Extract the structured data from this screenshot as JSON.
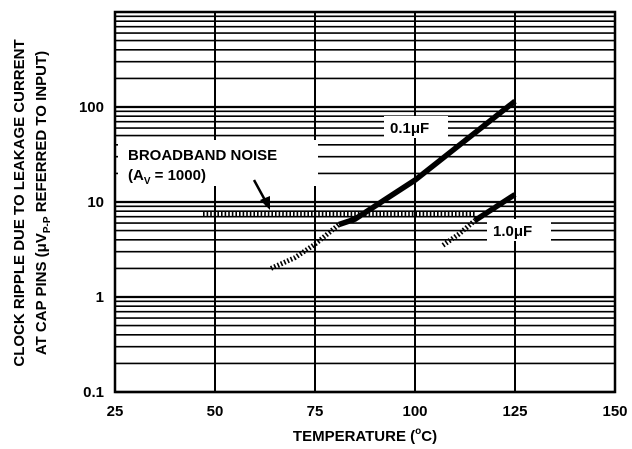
{
  "chart_data": {
    "type": "line",
    "xlabel": {
      "main": "TEMPERATURE (",
      "sup": "o",
      "post": "C)"
    },
    "ylabel": {
      "line1": "CLOCK RIPPLE DUE TO LEAKAGE CURRENT",
      "line2_pre": "AT CAP PINS (",
      "line2_mu": "μ",
      "line2_v": "V",
      "line2_sub": "P-P",
      "line2_post": " REFERRED TO INPUT)"
    },
    "x_range": [
      25,
      150
    ],
    "y_range": [
      0.1,
      1000
    ],
    "y_scale": "log",
    "x_ticks": [
      "25",
      "50",
      "75",
      "100",
      "125",
      "150"
    ],
    "y_ticks": [
      {
        "value": 0.1,
        "label": "0.1"
      },
      {
        "value": 1,
        "label": "1"
      },
      {
        "value": 10,
        "label": "10"
      },
      {
        "value": 100,
        "label": "100"
      }
    ],
    "grid": true,
    "series": [
      {
        "name": "0.1μF",
        "style": "solid",
        "x": [
          81,
          85,
          100,
          125
        ],
        "y": [
          5.8,
          6.6,
          17,
          115
        ]
      },
      {
        "name": "1.0μF",
        "style": "solid",
        "x": [
          115,
          125
        ],
        "y": [
          6.4,
          12
        ]
      },
      {
        "name": "BROADBAND NOISE",
        "style": "hatched",
        "x": [
          47,
          60,
          70,
          80,
          90,
          100,
          110,
          115
        ],
        "y": [
          7.5,
          7.5,
          7.4,
          7.4,
          7.4,
          7.4,
          7.4,
          7.4
        ]
      },
      {
        "name": "",
        "style": "hatched",
        "x": [
          64,
          70,
          75,
          81
        ],
        "y": [
          2.0,
          2.6,
          3.6,
          5.8
        ]
      },
      {
        "name": "",
        "style": "hatched",
        "x": [
          107,
          111,
          115
        ],
        "y": [
          3.5,
          4.6,
          6.4
        ]
      }
    ],
    "annotations": {
      "label_01": {
        "pre": "0.1",
        "mu": "μ",
        "post": "F"
      },
      "label_10": {
        "pre": "1.0",
        "mu": "μ",
        "post": "F"
      },
      "noise_line1": "BROADBAND NOISE",
      "noise_pre": "(A",
      "noise_sub": "V",
      "noise_post": " = 1000)"
    }
  }
}
